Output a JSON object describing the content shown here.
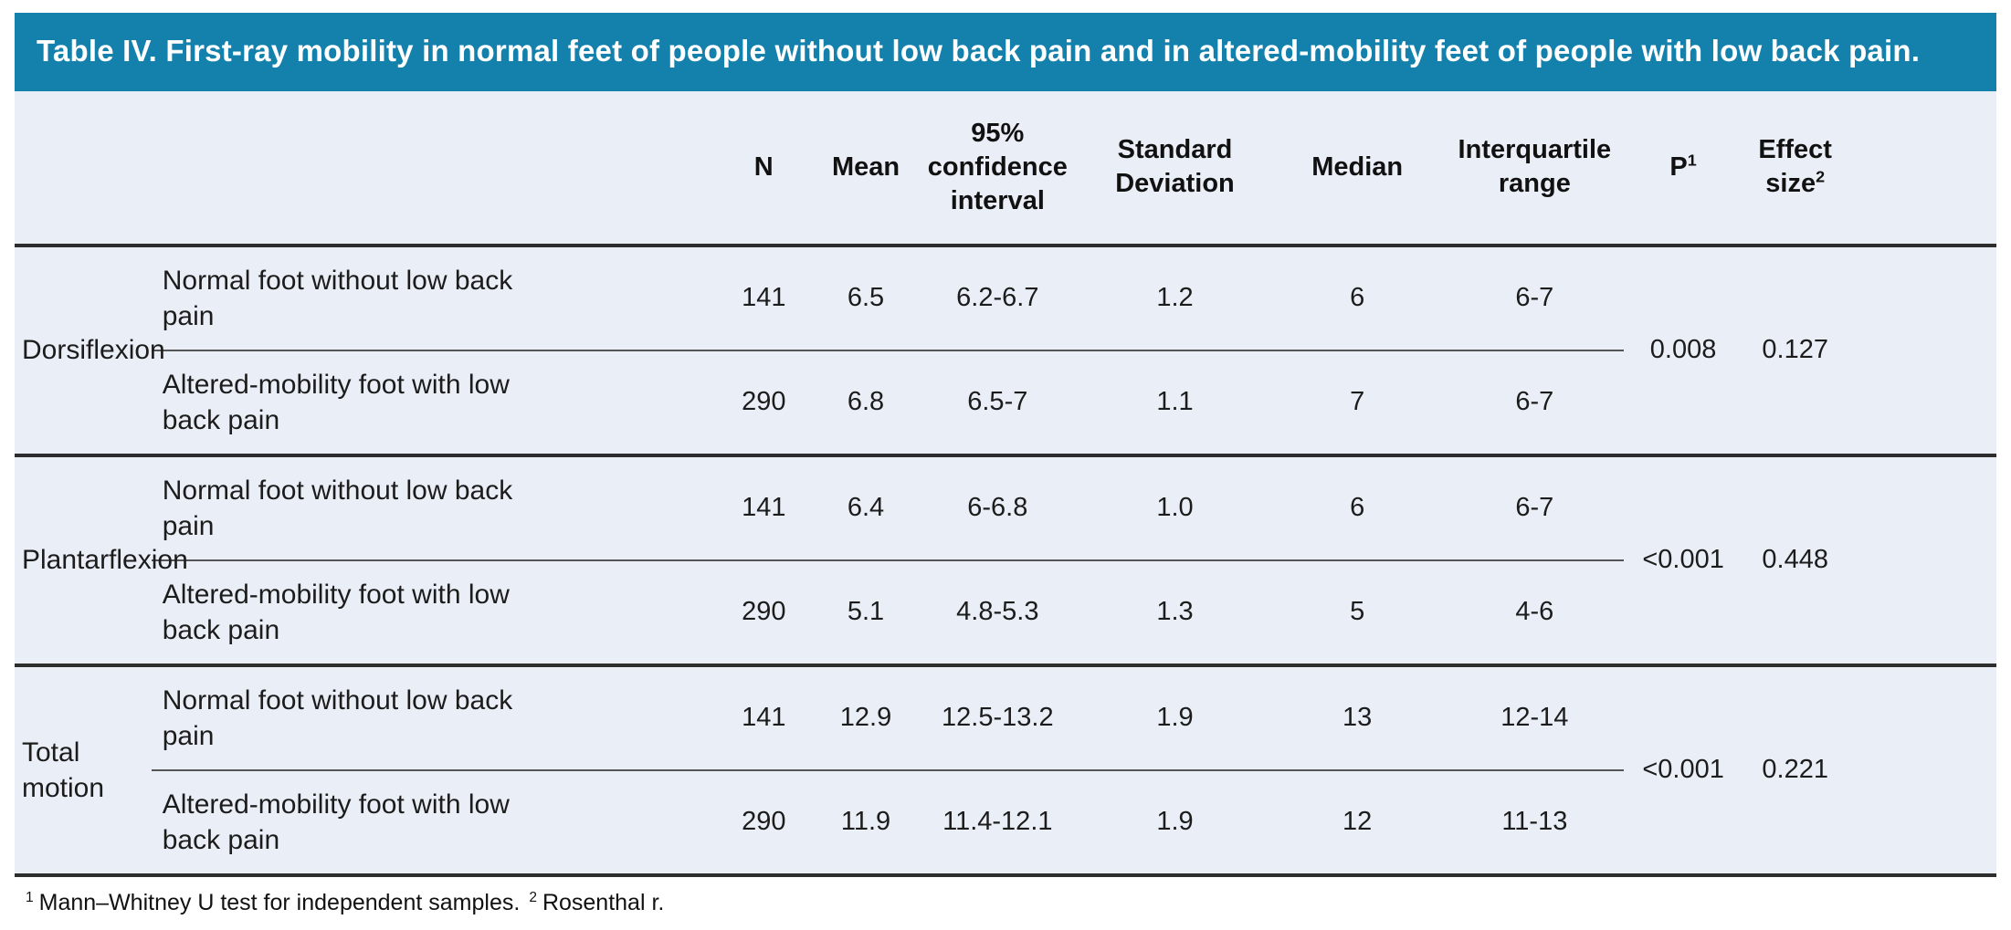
{
  "title": "Table IV. First-ray mobility in normal feet of people without low back pain and in altered-mobility feet of people with low back pain.",
  "columns": {
    "n": "N",
    "mean": "Mean",
    "ci": "95% confidence interval",
    "sd": "Standard Deviation",
    "median": "Median",
    "iqr": "Interquartile range",
    "p": {
      "label": "P",
      "sup": "1"
    },
    "effect": {
      "label": "Effect size",
      "sup": "2"
    }
  },
  "groups": [
    {
      "label": "Dorsiflexion",
      "p": "0.008",
      "effect": "0.127",
      "rows": [
        {
          "sublabel": "Normal foot without low back pain",
          "n": "141",
          "mean": "6.5",
          "ci": "6.2-6.7",
          "sd": "1.2",
          "median": "6",
          "iqr": "6-7"
        },
        {
          "sublabel": "Altered-mobility foot with low back pain",
          "n": "290",
          "mean": "6.8",
          "ci": "6.5-7",
          "sd": "1.1",
          "median": "7",
          "iqr": "6-7"
        }
      ]
    },
    {
      "label": "Plantarflexion",
      "p": "<0.001",
      "effect": "0.448",
      "rows": [
        {
          "sublabel": "Normal foot without low back pain",
          "n": "141",
          "mean": "6.4",
          "ci": "6-6.8",
          "sd": "1.0",
          "median": "6",
          "iqr": "6-7"
        },
        {
          "sublabel": "Altered-mobility foot with low back pain",
          "n": "290",
          "mean": "5.1",
          "ci": "4.8-5.3",
          "sd": "1.3",
          "median": "5",
          "iqr": "4-6"
        }
      ]
    },
    {
      "label": "Total motion",
      "p": "<0.001",
      "effect": "0.221",
      "rows": [
        {
          "sublabel": "Normal foot without low back pain",
          "n": "141",
          "mean": "12.9",
          "ci": "12.5-13.2",
          "sd": "1.9",
          "median": "13",
          "iqr": "12-14"
        },
        {
          "sublabel": "Altered-mobility foot with low back pain",
          "n": "290",
          "mean": "11.9",
          "ci": "11.4-12.1",
          "sd": "1.9",
          "median": "12",
          "iqr": "11-13"
        }
      ]
    }
  ],
  "footnote": {
    "sup1": "1",
    "text1": "Mann–Whitney U test for independent samples.",
    "sup2": "2",
    "text2": "Rosenthal r."
  },
  "colors": {
    "title_bg": "#1480AC",
    "title_text": "#FFFFFF",
    "body_bg": "#EAEFF7",
    "rule_dark": "#2D2D2D",
    "rule_light": "#555555"
  }
}
